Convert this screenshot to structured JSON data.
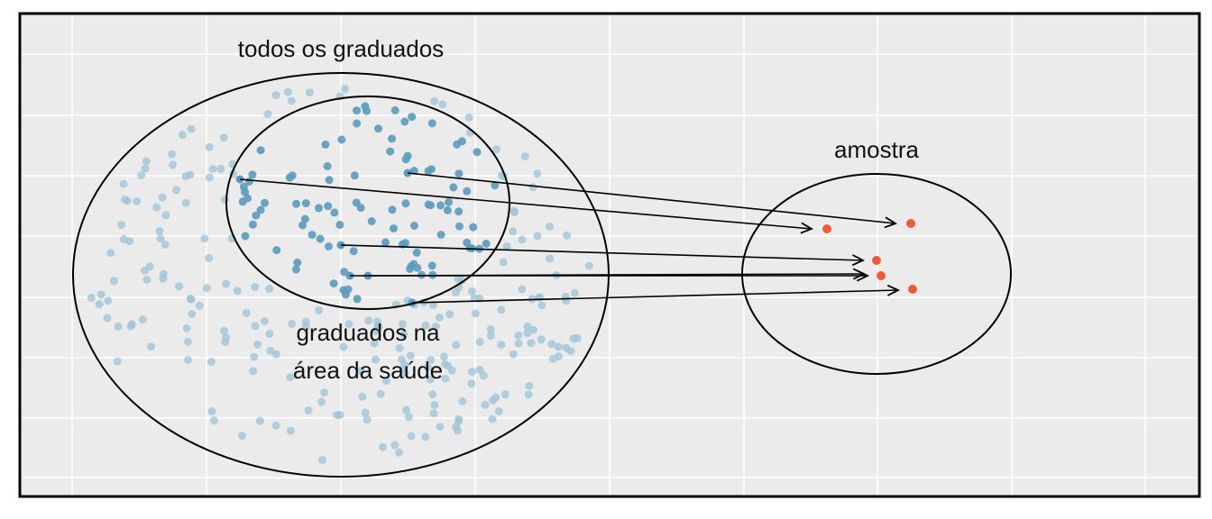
{
  "labels": {
    "population": "todos os graduados",
    "subgroup_line1": "graduados na",
    "subgroup_line2": "área da saúde",
    "sample": "amostra"
  },
  "colors": {
    "panel": "#ebebeb",
    "grid": "#ffffff",
    "population_point": "#9ec3d6",
    "subgroup_point": "#5b9bbd",
    "sample_point": "#f05a3c",
    "ink": "#000000"
  }
}
